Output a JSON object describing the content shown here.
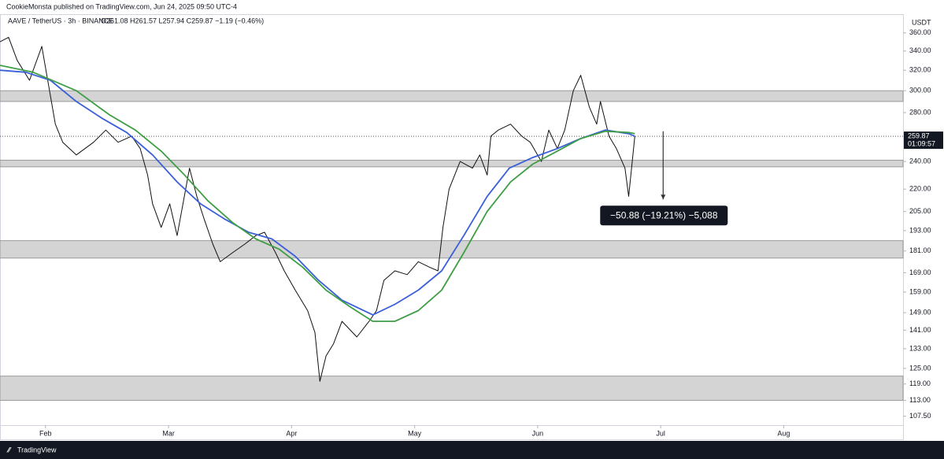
{
  "header": {
    "published": "CookieMonsta published on TradingView.com, Jun 24, 2025 09:50 UTC-4",
    "brand": "TradingView"
  },
  "chart_data": {
    "type": "line",
    "title": "AAVE / TetherUS · 3h · BINANCE",
    "ohlc": "O261.08 H261.57 L257.94 C259.87 −1.19 (−0.46%)",
    "y_unit": "USDT",
    "log_scale": true,
    "xlim": [
      1.63,
      8.97
    ],
    "xticks": [
      {
        "value": 2,
        "label": "Feb"
      },
      {
        "value": 3,
        "label": "Mar"
      },
      {
        "value": 4,
        "label": "Apr"
      },
      {
        "value": 5,
        "label": "May"
      },
      {
        "value": 6,
        "label": "Jun"
      },
      {
        "value": 7,
        "label": "Jul"
      },
      {
        "value": 8,
        "label": "Aug"
      }
    ],
    "ylim": [
      104,
      380
    ],
    "yticks": [
      {
        "value": 360,
        "label": "360.00"
      },
      {
        "value": 340,
        "label": "340.00"
      },
      {
        "value": 320,
        "label": "320.00"
      },
      {
        "value": 300,
        "label": "300.00"
      },
      {
        "value": 280,
        "label": "280.00"
      },
      {
        "value": 240,
        "label": "240.00"
      },
      {
        "value": 220,
        "label": "220.00"
      },
      {
        "value": 205,
        "label": "205.00"
      },
      {
        "value": 193,
        "label": "193.00"
      },
      {
        "value": 181,
        "label": "181.00"
      },
      {
        "value": 169,
        "label": "169.00"
      },
      {
        "value": 159,
        "label": "159.00"
      },
      {
        "value": 149,
        "label": "149.00"
      },
      {
        "value": 141,
        "label": "141.00"
      },
      {
        "value": 133,
        "label": "133.00"
      },
      {
        "value": 125,
        "label": "125.00"
      },
      {
        "value": 119,
        "label": "119.00"
      },
      {
        "value": 113,
        "label": "113.00"
      },
      {
        "value": 107.5,
        "label": "107.50"
      }
    ],
    "zones": [
      [
        290,
        300
      ],
      [
        236,
        241
      ],
      [
        177,
        187
      ],
      [
        113,
        122
      ]
    ],
    "series": [
      {
        "color": "#111111",
        "x": [
          1.63,
          1.7,
          1.77,
          1.87,
          1.97,
          2.08,
          2.14,
          2.25,
          2.39,
          2.49,
          2.59,
          2.7,
          2.77,
          2.83,
          2.87,
          2.94,
          3.01,
          3.07,
          3.17,
          3.23,
          3.29,
          3.36,
          3.42,
          3.52,
          3.62,
          3.71,
          3.78,
          3.87,
          3.94,
          4.03,
          4.13,
          4.19,
          4.23,
          4.28,
          4.34,
          4.41,
          4.53,
          4.63,
          4.69,
          4.75,
          4.84,
          4.94,
          5.03,
          5.12,
          5.19,
          5.23,
          5.28,
          5.37,
          5.47,
          5.53,
          5.59,
          5.62,
          5.68,
          5.78,
          5.87,
          5.94,
          6.03,
          6.09,
          6.16,
          6.22,
          6.29,
          6.35,
          6.42,
          6.48,
          6.51,
          6.58,
          6.64,
          6.71,
          6.74,
          6.79
        ],
        "values": [
          350,
          355,
          330,
          310,
          345,
          270,
          255,
          245,
          255,
          265,
          255,
          260,
          250,
          230,
          210,
          195,
          210,
          190,
          235,
          215,
          200,
          185,
          175,
          180,
          185,
          190,
          192,
          180,
          170,
          160,
          150,
          140,
          120,
          130,
          135,
          145,
          138,
          145,
          150,
          165,
          170,
          168,
          175,
          172,
          170,
          195,
          220,
          240,
          235,
          245,
          230,
          260,
          265,
          270,
          260,
          255,
          240,
          265,
          250,
          265,
          300,
          315,
          285,
          270,
          290,
          260,
          250,
          235,
          215,
          259.87
        ]
      },
      {
        "color": "#3a5fd9",
        "x": [
          1.63,
          1.84,
          2.04,
          2.25,
          2.46,
          2.66,
          2.87,
          3.07,
          3.26,
          3.46,
          3.65,
          3.84,
          4.03,
          4.22,
          4.41,
          4.66,
          4.84,
          5.03,
          5.22,
          5.4,
          5.59,
          5.77,
          5.96,
          6.16,
          6.35,
          6.55,
          6.74,
          6.79
        ],
        "values": [
          320,
          318,
          310,
          290,
          275,
          263,
          245,
          225,
          210,
          200,
          192,
          188,
          178,
          165,
          155,
          148,
          153,
          160,
          170,
          190,
          215,
          235,
          243,
          250,
          258,
          265,
          262,
          260
        ]
      },
      {
        "color": "#3f9e45",
        "x": [
          1.63,
          1.9,
          2.25,
          2.52,
          2.73,
          2.94,
          3.13,
          3.32,
          3.52,
          3.71,
          3.9,
          4.09,
          4.28,
          4.47,
          4.66,
          4.84,
          5.03,
          5.22,
          5.4,
          5.59,
          5.78,
          5.96,
          6.16,
          6.35,
          6.55,
          6.74,
          6.79
        ],
        "values": [
          325,
          318,
          300,
          278,
          265,
          248,
          230,
          212,
          198,
          188,
          182,
          172,
          160,
          152,
          145,
          145,
          150,
          160,
          180,
          205,
          225,
          238,
          248,
          258,
          264,
          263,
          262
        ]
      }
    ],
    "last_price": {
      "value": 259.87,
      "label": "259.87",
      "countdown": "01:09:57"
    },
    "measure": {
      "x": 7.02,
      "from": 264,
      "to": 213,
      "label": "−50.88 (−19.21%) −5,088"
    }
  }
}
